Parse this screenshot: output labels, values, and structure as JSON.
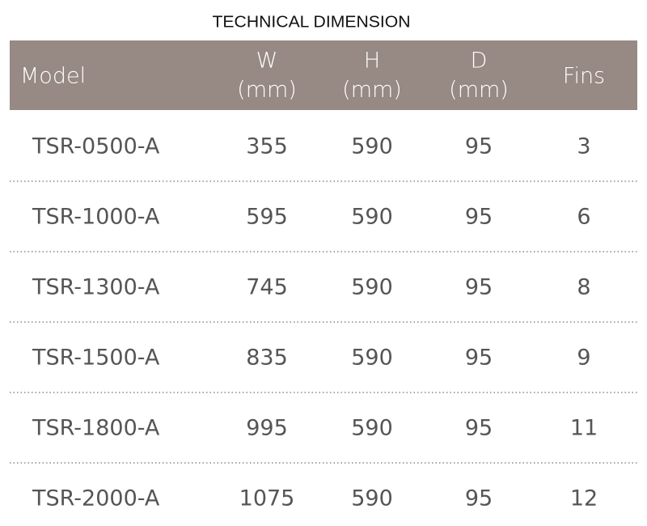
{
  "title": "TECHNICAL DIMENSION",
  "table": {
    "header": [
      [
        "Model"
      ],
      [
        "W",
        "(mm)"
      ],
      [
        "H",
        "(mm)"
      ],
      [
        "D",
        "(mm)"
      ],
      [
        "Fins"
      ]
    ],
    "rows": [
      [
        "TSR-0500-A",
        355,
        590,
        95,
        3
      ],
      [
        "TSR-1000-A",
        595,
        590,
        95,
        6
      ],
      [
        "TSR-1300-A",
        745,
        590,
        95,
        8
      ],
      [
        "TSR-1500-A",
        835,
        590,
        95,
        9
      ],
      [
        "TSR-1800-A",
        995,
        590,
        95,
        11
      ],
      [
        "TSR-2000-A",
        1075,
        590,
        95,
        12
      ]
    ]
  }
}
